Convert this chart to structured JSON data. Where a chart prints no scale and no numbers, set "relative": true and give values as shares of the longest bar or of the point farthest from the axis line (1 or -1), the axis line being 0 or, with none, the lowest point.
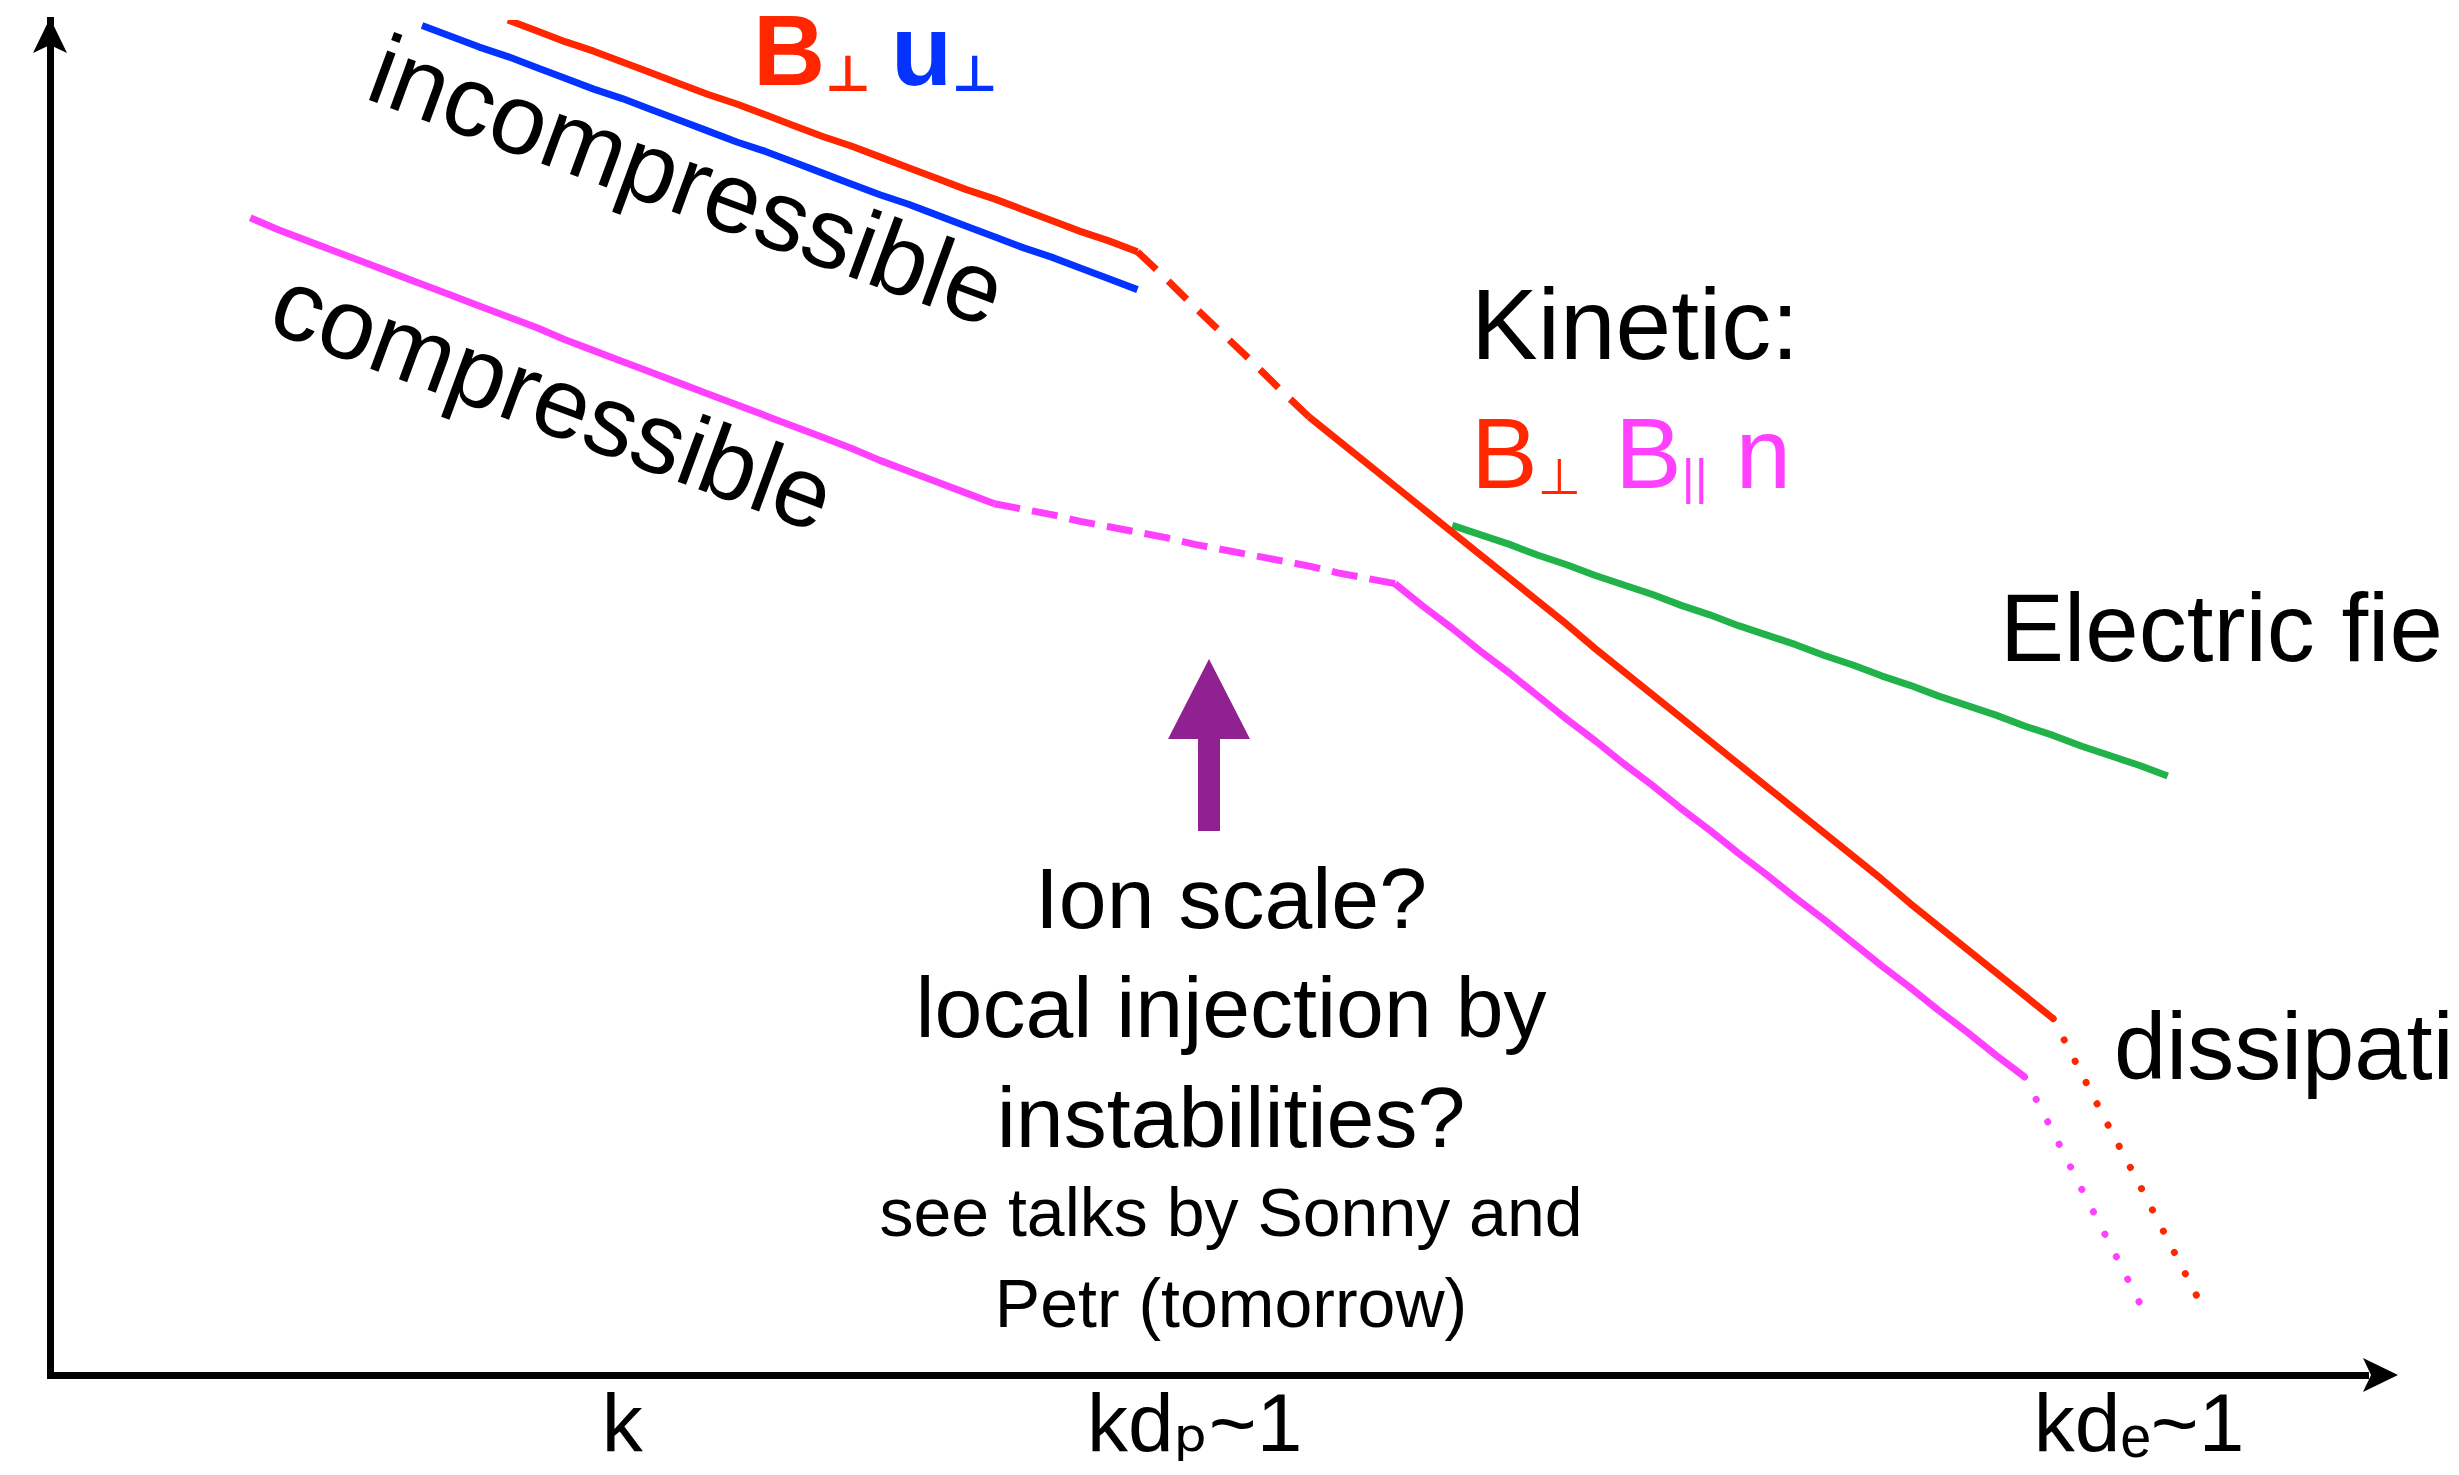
{
  "chart_data": {
    "type": "line",
    "relative": true,
    "marker": "none",
    "categories": [
      null,
      null,
      null,
      null,
      null,
      null,
      null,
      null,
      null,
      null,
      null,
      null,
      null,
      null,
      null,
      null,
      null,
      null,
      null,
      null,
      "k",
      null,
      null,
      null,
      null,
      null,
      null,
      null,
      null,
      null,
      null,
      null,
      null,
      null,
      null,
      null,
      null,
      null,
      null,
      null,
      "kdₚ~1",
      null,
      null,
      null,
      null,
      null,
      null,
      null,
      null,
      null,
      null,
      null,
      null,
      null,
      null,
      null,
      null,
      null,
      null,
      null,
      null,
      null,
      null,
      null,
      null,
      null,
      null,
      null,
      null,
      null,
      null,
      null,
      null,
      "kdₑ~1",
      null,
      null,
      null,
      null,
      null,
      null,
      null,
      null
    ],
    "series": [
      {
        "name": "B$_{⊥}$",
        "color": "#ff2600",
        "values": [
          null,
          null,
          null,
          null,
          null,
          null,
          null,
          null,
          null,
          null,
          null,
          null,
          null,
          null,
          null,
          null,
          1.0,
          0.992,
          0.984,
          0.977,
          0.969,
          0.961,
          0.953,
          0.945,
          0.938,
          0.93,
          0.922,
          0.914,
          0.907,
          0.899,
          0.891,
          0.883,
          0.875,
          0.868,
          0.86,
          0.852,
          0.844,
          0.837,
          0.829,
          null,
          null,
          null,
          null,
          null,
          null,
          null,
          null,
          null,
          null,
          null,
          null,
          null,
          null,
          null,
          null,
          null,
          null,
          null,
          null,
          null,
          null,
          null,
          null,
          null,
          null,
          null,
          null,
          null,
          null,
          null,
          null,
          null,
          null,
          null,
          null,
          null,
          null,
          null,
          null,
          null,
          null,
          null
        ]
      },
      {
        "color": "#ff2600",
        "line_style": "dashed",
        "values": [
          null,
          null,
          null,
          null,
          null,
          null,
          null,
          null,
          null,
          null,
          null,
          null,
          null,
          null,
          null,
          null,
          null,
          null,
          null,
          null,
          null,
          null,
          null,
          null,
          null,
          null,
          null,
          null,
          null,
          null,
          null,
          null,
          null,
          null,
          null,
          null,
          null,
          null,
          0.829,
          0.809,
          0.788,
          0.768,
          0.748,
          0.727,
          0.707,
          null,
          null,
          null,
          null,
          null,
          null,
          null,
          null,
          null,
          null,
          null,
          null,
          null,
          null,
          null,
          null,
          null,
          null,
          null,
          null,
          null,
          null,
          null,
          null,
          null,
          null,
          null,
          null,
          null,
          null,
          null,
          null,
          null,
          null,
          null,
          null,
          null
        ]
      },
      {
        "name": "B$_{⊥}$",
        "color": "#ff2600",
        "values": [
          null,
          null,
          null,
          null,
          null,
          null,
          null,
          null,
          null,
          null,
          null,
          null,
          null,
          null,
          null,
          null,
          null,
          null,
          null,
          null,
          null,
          null,
          null,
          null,
          null,
          null,
          null,
          null,
          null,
          null,
          null,
          null,
          null,
          null,
          null,
          null,
          null,
          null,
          null,
          null,
          null,
          null,
          null,
          null,
          0.707,
          0.69,
          0.673,
          0.656,
          0.639,
          0.622,
          0.605,
          0.588,
          0.571,
          0.554,
          0.536,
          0.519,
          0.502,
          0.485,
          0.468,
          0.451,
          0.434,
          0.417,
          0.4,
          0.383,
          0.366,
          0.348,
          0.331,
          0.314,
          0.297,
          0.28,
          0.263,
          null,
          null,
          null,
          null,
          null,
          null,
          null,
          null,
          null,
          null,
          null
        ]
      },
      {
        "color": "#ff2600",
        "line_style": "dotted",
        "values": [
          null,
          null,
          null,
          null,
          null,
          null,
          null,
          null,
          null,
          null,
          null,
          null,
          null,
          null,
          null,
          null,
          null,
          null,
          null,
          null,
          null,
          null,
          null,
          null,
          null,
          null,
          null,
          null,
          null,
          null,
          null,
          null,
          null,
          null,
          null,
          null,
          null,
          null,
          null,
          null,
          null,
          null,
          null,
          null,
          null,
          null,
          null,
          null,
          null,
          null,
          null,
          null,
          null,
          null,
          null,
          null,
          null,
          null,
          null,
          null,
          null,
          null,
          null,
          null,
          null,
          null,
          null,
          null,
          null,
          null,
          0.263,
          0.222,
          0.181,
          0.141,
          0.1,
          0.059,
          null,
          null,
          null,
          null,
          null,
          null
        ]
      },
      {
        "name": "u$_{⊥}$",
        "color": "#0433ff",
        "values": [
          null,
          null,
          null,
          null,
          null,
          null,
          null,
          null,
          null,
          null,
          null,
          null,
          null,
          0.996,
          0.988,
          0.98,
          0.973,
          0.965,
          0.957,
          0.949,
          0.942,
          0.934,
          0.926,
          0.918,
          0.91,
          0.903,
          0.895,
          0.887,
          0.879,
          0.871,
          0.864,
          0.856,
          0.848,
          0.84,
          0.832,
          0.825,
          0.817,
          0.809,
          0.801,
          null,
          null,
          null,
          null,
          null,
          null,
          null,
          null,
          null,
          null,
          null,
          null,
          null,
          null,
          null,
          null,
          null,
          null,
          null,
          null,
          null,
          null,
          null,
          null,
          null,
          null,
          null,
          null,
          null,
          null,
          null,
          null,
          null,
          null,
          null,
          null,
          null,
          null,
          null,
          null,
          null,
          null,
          null
        ]
      },
      {
        "color": "#ff40ff",
        "values": [
          null,
          null,
          null,
          null,
          null,
          null,
          null,
          0.854,
          0.845,
          0.837,
          0.829,
          0.821,
          0.813,
          0.805,
          0.797,
          0.789,
          0.781,
          0.773,
          0.764,
          0.756,
          0.748,
          0.74,
          0.732,
          0.724,
          0.716,
          0.708,
          0.7,
          0.692,
          0.684,
          0.675,
          0.667,
          0.659,
          0.651,
          0.643,
          null,
          null,
          null,
          null,
          null,
          null,
          null,
          null,
          null,
          null,
          null,
          null,
          null,
          null,
          null,
          null,
          null,
          null,
          null,
          null,
          null,
          null,
          null,
          null,
          null,
          null,
          null,
          null,
          null,
          null,
          null,
          null,
          null,
          null,
          null,
          null,
          null,
          null,
          null,
          null,
          null,
          null,
          null,
          null,
          null,
          null,
          null,
          null
        ]
      },
      {
        "color": "#ff40ff",
        "line_style": "dashed",
        "values": [
          null,
          null,
          null,
          null,
          null,
          null,
          null,
          null,
          null,
          null,
          null,
          null,
          null,
          null,
          null,
          null,
          null,
          null,
          null,
          null,
          null,
          null,
          null,
          null,
          null,
          null,
          null,
          null,
          null,
          null,
          null,
          null,
          null,
          0.643,
          0.639,
          0.635,
          0.63,
          0.626,
          0.622,
          0.618,
          0.613,
          0.609,
          0.605,
          0.601,
          0.597,
          0.592,
          0.588,
          0.584,
          null,
          null,
          null,
          null,
          null,
          null,
          null,
          null,
          null,
          null,
          null,
          null,
          null,
          null,
          null,
          null,
          null,
          null,
          null,
          null,
          null,
          null,
          null,
          null,
          null,
          null,
          null,
          null,
          null,
          null,
          null,
          null,
          null,
          null
        ]
      },
      {
        "name": "B$_{||}$ n",
        "color": "#ff40ff",
        "values": [
          null,
          null,
          null,
          null,
          null,
          null,
          null,
          null,
          null,
          null,
          null,
          null,
          null,
          null,
          null,
          null,
          null,
          null,
          null,
          null,
          null,
          null,
          null,
          null,
          null,
          null,
          null,
          null,
          null,
          null,
          null,
          null,
          null,
          null,
          null,
          null,
          null,
          null,
          null,
          null,
          null,
          null,
          null,
          null,
          null,
          null,
          null,
          0.584,
          0.567,
          0.551,
          0.534,
          0.518,
          0.501,
          0.484,
          0.468,
          0.451,
          0.435,
          0.418,
          0.402,
          0.385,
          0.369,
          0.352,
          0.336,
          0.319,
          0.302,
          0.286,
          0.269,
          0.253,
          0.236,
          0.22,
          null,
          null,
          null,
          null,
          null,
          null,
          null,
          null,
          null,
          null,
          null,
          null
        ]
      },
      {
        "color": "#ff40ff",
        "line_style": "dotted",
        "values": [
          null,
          null,
          null,
          null,
          null,
          null,
          null,
          null,
          null,
          null,
          null,
          null,
          null,
          null,
          null,
          null,
          null,
          null,
          null,
          null,
          null,
          null,
          null,
          null,
          null,
          null,
          null,
          null,
          null,
          null,
          null,
          null,
          null,
          null,
          null,
          null,
          null,
          null,
          null,
          null,
          null,
          null,
          null,
          null,
          null,
          null,
          null,
          null,
          null,
          null,
          null,
          null,
          null,
          null,
          null,
          null,
          null,
          null,
          null,
          null,
          null,
          null,
          null,
          null,
          null,
          null,
          null,
          null,
          null,
          0.22,
          0.179,
          0.137,
          0.096,
          0.054,
          null,
          null,
          null,
          null,
          null,
          null,
          null,
          null
        ]
      },
      {
        "name": "Electric fie",
        "color": "#21b24a",
        "values": [
          null,
          null,
          null,
          null,
          null,
          null,
          null,
          null,
          null,
          null,
          null,
          null,
          null,
          null,
          null,
          null,
          null,
          null,
          null,
          null,
          null,
          null,
          null,
          null,
          null,
          null,
          null,
          null,
          null,
          null,
          null,
          null,
          null,
          null,
          null,
          null,
          null,
          null,
          null,
          null,
          null,
          null,
          null,
          null,
          null,
          null,
          null,
          null,
          null,
          0.627,
          0.62,
          0.613,
          0.605,
          0.598,
          0.59,
          0.583,
          0.576,
          0.568,
          0.561,
          0.553,
          0.546,
          0.539,
          0.531,
          0.524,
          0.516,
          0.509,
          0.501,
          0.494,
          0.487,
          0.479,
          0.472,
          0.464,
          0.457,
          0.45,
          0.442,
          null,
          null,
          null,
          null,
          null,
          null,
          null
        ]
      }
    ],
    "annotations": [
      "incompressible",
      "compressible",
      "Kinetic:",
      "Ion scale?",
      "local injection by instabilities?",
      "see talks by Sonny and Petr (tomorrow)",
      "dissipati"
    ]
  }
}
